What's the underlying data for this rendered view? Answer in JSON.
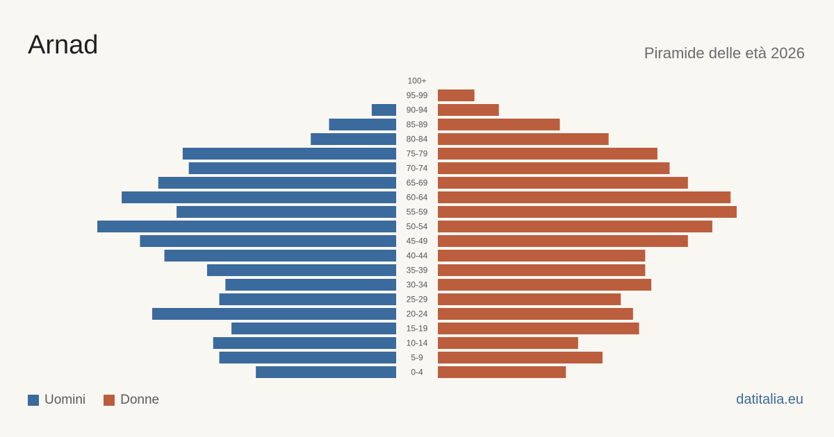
{
  "title": "Arnad",
  "subtitle": "Piramide delle età 2026",
  "brand": "datitalia.eu",
  "colors": {
    "male": "#3b6a9c",
    "female": "#bb5e3d",
    "label": "#555555",
    "brand": "#3b6a9c"
  },
  "legend": {
    "male_label": "Uomini",
    "female_label": "Donne"
  },
  "chart_data": {
    "type": "bar",
    "orientation": "horizontal-pyramid",
    "categories": [
      "100+",
      "95-99",
      "90-94",
      "85-89",
      "80-84",
      "75-79",
      "70-74",
      "65-69",
      "60-64",
      "55-59",
      "50-54",
      "45-49",
      "40-44",
      "35-39",
      "30-34",
      "25-29",
      "20-24",
      "15-19",
      "10-14",
      "5-9",
      "0-4"
    ],
    "series": [
      {
        "name": "Uomini",
        "values": [
          0,
          0,
          4,
          11,
          14,
          35,
          34,
          39,
          45,
          36,
          49,
          42,
          38,
          31,
          28,
          29,
          40,
          27,
          30,
          29,
          23
        ]
      },
      {
        "name": "Donne",
        "values": [
          0,
          6,
          10,
          20,
          28,
          36,
          38,
          41,
          48,
          49,
          45,
          41,
          34,
          34,
          35,
          30,
          32,
          33,
          23,
          27,
          21
        ]
      }
    ],
    "xlim": [
      0,
      49
    ],
    "legend_position": "bottom-left"
  }
}
